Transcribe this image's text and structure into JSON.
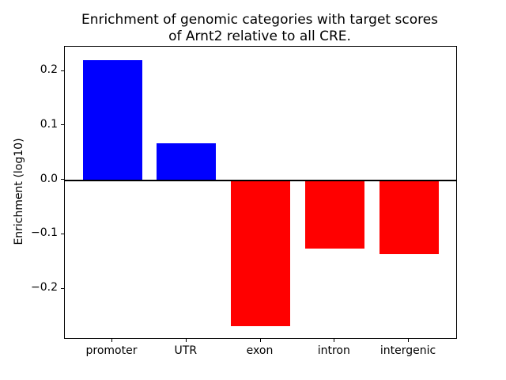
{
  "chart_data": {
    "type": "bar",
    "title": "Enrichment of genomic categories with target scores\nof Arnt2 relative to all CRE.",
    "xlabel": "",
    "ylabel": "Enrichment (log10)",
    "categories": [
      "promoter",
      "UTR",
      "exon",
      "intron",
      "intergenic"
    ],
    "values": [
      0.22,
      0.067,
      -0.268,
      -0.126,
      -0.136
    ],
    "bar_colors": [
      "#0000ff",
      "#0000ff",
      "#ff0000",
      "#ff0000",
      "#ff0000"
    ],
    "positive_color": "#0000ff",
    "negative_color": "#ff0000",
    "yticks": [
      0.2,
      0.1,
      0.0,
      -0.1,
      -0.2
    ],
    "ytick_labels": [
      "0.2",
      "0.1",
      "0.0",
      "−0.1",
      "−0.2"
    ],
    "ylim": [
      -0.29,
      0.245
    ],
    "xlim": [
      -0.64,
      4.64
    ],
    "bar_width": 0.8,
    "zero_line": true,
    "grid": false,
    "legend_position": "none"
  }
}
